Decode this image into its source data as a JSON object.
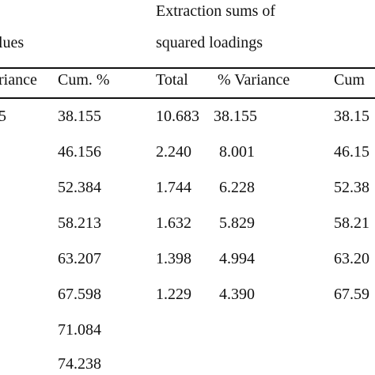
{
  "header": {
    "group_left_partial": "lues",
    "group_right_line1": "Extraction sums of",
    "group_right_line2": "squared loadings"
  },
  "columns": {
    "left_variance_partial": "riance",
    "left_cum": "Cum. %",
    "right_total": "Total",
    "right_variance": "% Variance",
    "right_cum_partial": "Cum"
  },
  "rows": [
    {
      "left_partial": "5",
      "left_cum": "38.155",
      "total": "10.683",
      "variance": "38.155",
      "cum": "38.15"
    },
    {
      "left_partial": "",
      "left_cum": "46.156",
      "total": "2.240",
      "variance": "8.001",
      "cum": "46.15"
    },
    {
      "left_partial": "",
      "left_cum": "52.384",
      "total": "1.744",
      "variance": "6.228",
      "cum": "52.38"
    },
    {
      "left_partial": "",
      "left_cum": "58.213",
      "total": "1.632",
      "variance": "5.829",
      "cum": "58.21"
    },
    {
      "left_partial": "",
      "left_cum": "63.207",
      "total": "1.398",
      "variance": "4.994",
      "cum": "63.20"
    },
    {
      "left_partial": "",
      "left_cum": "67.598",
      "total": "1.229",
      "variance": "4.390",
      "cum": "67.59"
    },
    {
      "left_partial": "",
      "left_cum": "71.084",
      "total": "",
      "variance": "",
      "cum": ""
    },
    {
      "left_partial": "",
      "left_cum": "74.238",
      "total": "",
      "variance": "",
      "cum": ""
    }
  ]
}
